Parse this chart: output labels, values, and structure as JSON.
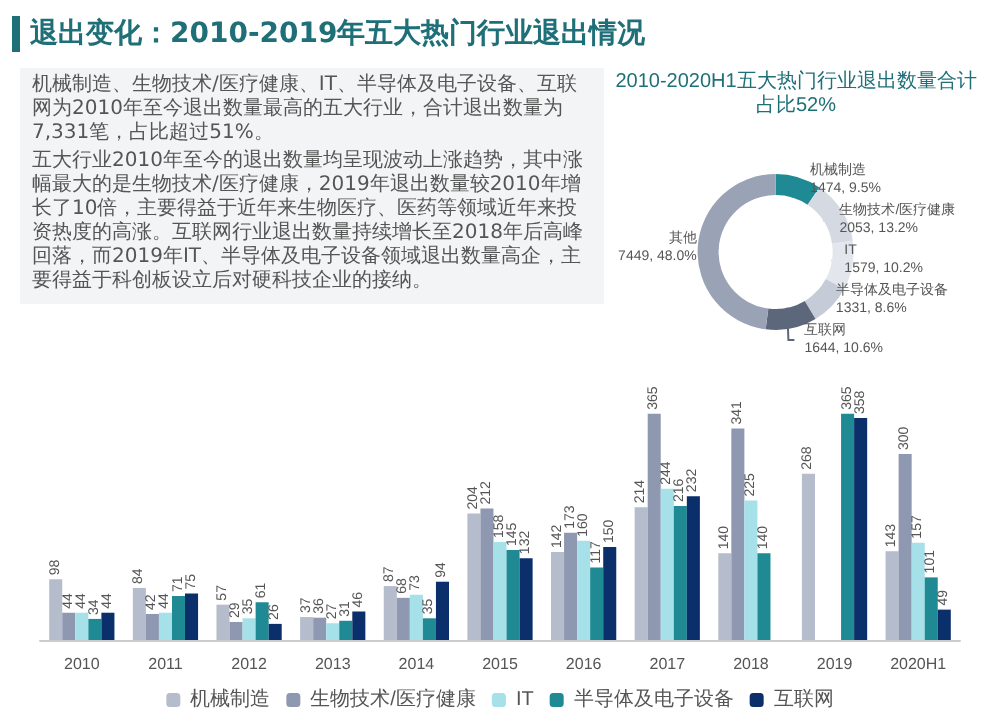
{
  "chart_data": [
    {
      "type": "bar",
      "title": "退出变化：2010-2019年五大热门行业退出情况",
      "annotations": [
        "机械制造、生物技术/医疗健康、IT、半导体及电子设备、互联网为2010年至今退出数量最高的五大行业，合计退出数量为7,331笔，占比超过51%。",
        "五大行业2010年至今的退出数量均呈现波动上涨趋势，其中涨幅最大的是生物技术/医疗健康，2019年退出数量较2010年增长了10倍，主要得益于近年来生物医疗、医药等领域近年来投资热度的高涨。互联网行业退出数量持续增长至2018年后高峰回落，而2019年IT、半导体及电子设备领域退出数量高企，主要得益于科创板设立后对硬科技企业的接纳。"
      ],
      "categories": [
        "2010",
        "2011",
        "2012",
        "2013",
        "2014",
        "2015",
        "2016",
        "2017",
        "2018",
        "2019",
        "2020H1"
      ],
      "series": [
        {
          "name": "机械制造",
          "color": "#b5bccb",
          "values": [
            98,
            84,
            57,
            37,
            87,
            204,
            142,
            214,
            140,
            268,
            143
          ]
        },
        {
          "name": "生物技术/医疗健康",
          "color": "#8e98b0",
          "values": [
            44,
            42,
            29,
            36,
            68,
            212,
            173,
            365,
            341,
            null,
            300
          ]
        },
        {
          "name": "IT",
          "color": "#a6e0e8",
          "values": [
            44,
            44,
            35,
            27,
            73,
            158,
            160,
            244,
            225,
            null,
            157
          ]
        },
        {
          "name": "半导体及电子设备",
          "color": "#1f8a94",
          "values": [
            34,
            71,
            61,
            31,
            35,
            145,
            117,
            216,
            140,
            365,
            101
          ]
        },
        {
          "name": "互联网",
          "color": "#0b2f6b",
          "values": [
            44,
            75,
            26,
            46,
            94,
            132,
            150,
            232,
            null,
            358,
            49
          ]
        }
      ],
      "data_labels": true,
      "tick_labels": "x",
      "legend": "bottom"
    },
    {
      "type": "donut",
      "title": "2010-2020H1五大热门行业退出数量合计占比52%",
      "categories": [
        "机械制造",
        "生物技术/医疗健康",
        "IT",
        "半导体及电子设备",
        "互联网",
        "其他"
      ],
      "values": [
        1474,
        2053,
        1579,
        1331,
        1644,
        7449
      ],
      "value_labels": [
        "1474, 9.5%",
        "2053, 13.2%",
        "1579, 10.2%",
        "1331, 8.6%",
        "1644, 10.6%",
        "7449, 48.0%"
      ],
      "colors": [
        "#1f8a94",
        "#d5d9e2",
        "#e3e6ec",
        "#c6ccd7",
        "#5d677c",
        "#9aa3b5"
      ]
    }
  ]
}
